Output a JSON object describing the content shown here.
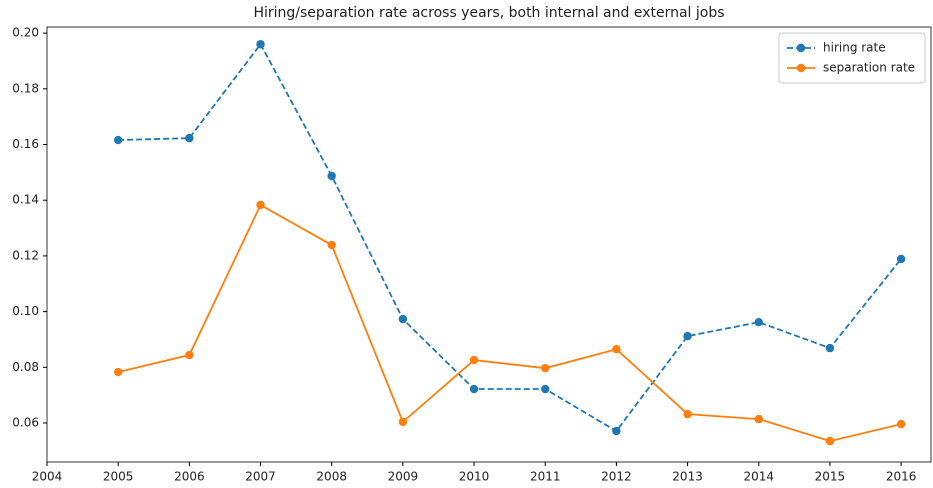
{
  "chart_data": {
    "type": "line",
    "title": "Hiring/separation rate across years, both internal and external jobs",
    "x": [
      2005,
      2006,
      2007,
      2008,
      2009,
      2010,
      2011,
      2012,
      2013,
      2014,
      2015,
      2016
    ],
    "series": [
      {
        "name": "hiring rate",
        "color": "#1f77b4",
        "linestyle": "dashed",
        "values": [
          0.1616,
          0.1623,
          0.196,
          0.1487,
          0.0973,
          0.0722,
          0.0722,
          0.0571,
          0.0912,
          0.0962,
          0.0869,
          0.1189
        ]
      },
      {
        "name": "separation rate",
        "color": "#ff7f0e",
        "linestyle": "solid",
        "values": [
          0.0783,
          0.0844,
          0.1383,
          0.1239,
          0.0604,
          0.0826,
          0.0797,
          0.0865,
          0.0632,
          0.0614,
          0.0535,
          0.0596
        ]
      }
    ],
    "xlim": [
      2004,
      2016.42
    ],
    "xticks": [
      2004,
      2005,
      2006,
      2007,
      2008,
      2009,
      2010,
      2011,
      2012,
      2013,
      2014,
      2015,
      2016
    ],
    "ylim": [
      0.046,
      0.2022
    ],
    "yticks": [
      0.06,
      0.08,
      {
        "value": 0.1,
        "label": "0.10"
      },
      0.12,
      0.14,
      0.16,
      0.18,
      {
        "value": 0.2,
        "label": "0.20"
      }
    ],
    "legend": "upper right"
  }
}
